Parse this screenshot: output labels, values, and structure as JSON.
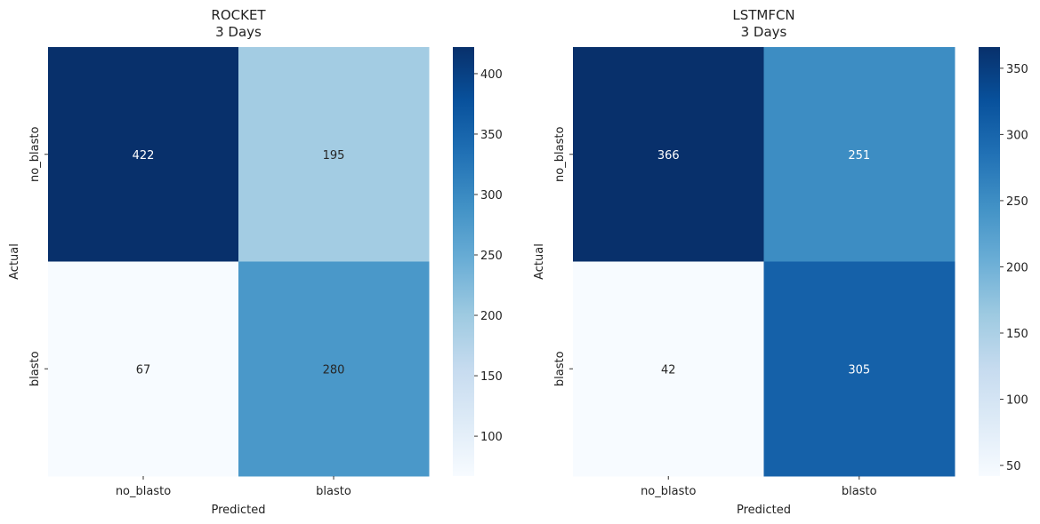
{
  "chart_data": [
    {
      "type": "heatmap",
      "title": "ROCKET\n3 Days",
      "xlabel": "Predicted",
      "ylabel": "Actual",
      "x_categories": [
        "no_blasto",
        "blasto"
      ],
      "y_categories": [
        "no_blasto",
        "blasto"
      ],
      "values": [
        [
          422,
          195
        ],
        [
          67,
          280
        ]
      ],
      "colormap": "Blues",
      "vmin": 67,
      "vmax": 422,
      "colorbar_ticks": [
        100,
        150,
        200,
        250,
        300,
        350,
        400
      ]
    },
    {
      "type": "heatmap",
      "title": "LSTMFCN\n3 Days",
      "xlabel": "Predicted",
      "ylabel": "Actual",
      "x_categories": [
        "no_blasto",
        "blasto"
      ],
      "y_categories": [
        "no_blasto",
        "blasto"
      ],
      "values": [
        [
          366,
          251
        ],
        [
          42,
          305
        ]
      ],
      "colormap": "Blues",
      "vmin": 42,
      "vmax": 366,
      "colorbar_ticks": [
        50,
        100,
        150,
        200,
        250,
        300,
        350
      ]
    }
  ],
  "colors": {
    "blues_low": "#f7fbff",
    "blues_high": "#08306b",
    "label_dark": "#262626",
    "label_light": "#ffffff"
  }
}
